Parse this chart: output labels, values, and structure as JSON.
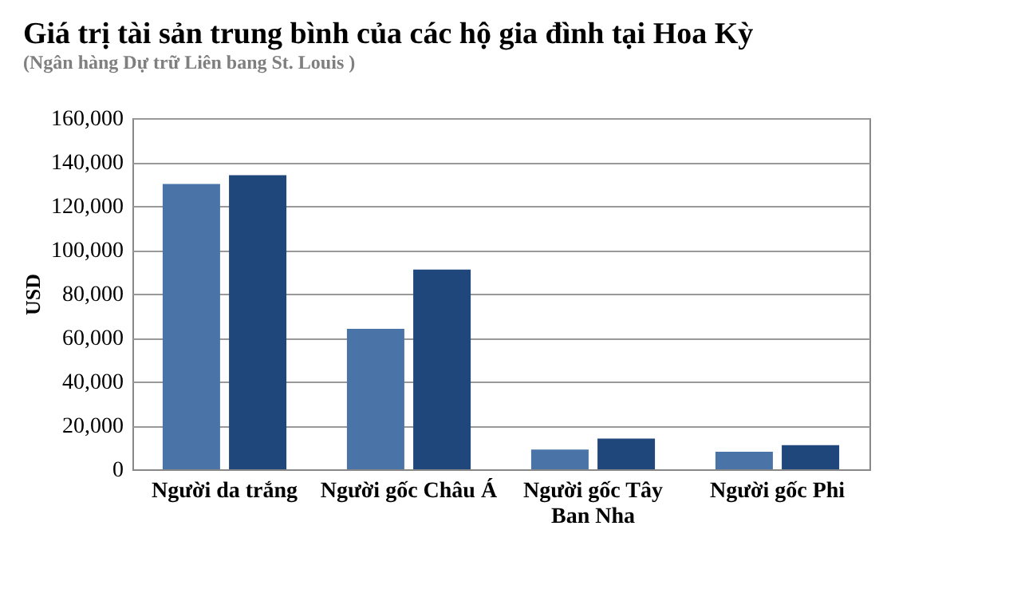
{
  "chart_data": {
    "type": "bar",
    "title": "Giá trị tài sản trung bình của các hộ gia đình tại Hoa Kỳ",
    "subtitle": "(Ngân hàng Dự trữ Liên bang St. Louis )",
    "ylabel": "USD",
    "categories": [
      "Người da trắng",
      "Người gốc Châu Á",
      "Người gốc Tây Ban Nha",
      "Người gốc Phi"
    ],
    "series": [
      {
        "color": "#4a74a8",
        "values": [
          130000,
          64000,
          9000,
          8000
        ]
      },
      {
        "color": "#1f477b",
        "values": [
          134000,
          91000,
          14000,
          11000
        ]
      }
    ],
    "ylim": [
      0,
      160000
    ],
    "yticks": [
      0,
      {
        "value": 20000,
        "label": "20,000"
      },
      {
        "value": 40000,
        "label": "40,000"
      },
      {
        "value": 60000,
        "label": "60,000"
      },
      {
        "value": 80000,
        "label": "80,000"
      },
      {
        "value": 100000,
        "label": "100,000"
      },
      {
        "value": 120000,
        "label": "120,000"
      },
      {
        "value": 140000,
        "label": "140,000"
      },
      {
        "value": 160000,
        "label": "160,000"
      }
    ],
    "grid": "y",
    "legend": false
  }
}
